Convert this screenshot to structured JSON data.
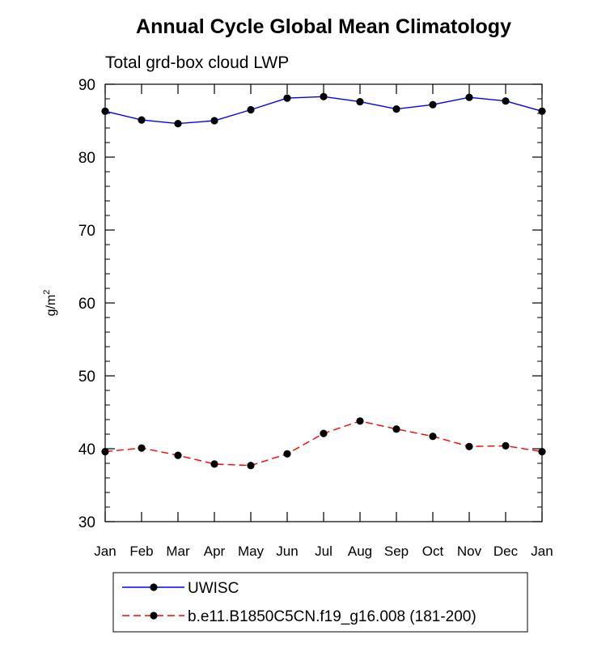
{
  "chart_data": {
    "type": "line",
    "title": "Annual Cycle Global Mean Climatology",
    "subtitle": "Total grd-box cloud LWP",
    "xlabel": "",
    "ylabel": "g/m",
    "ylabel_superscript": "2",
    "categories": [
      "Jan",
      "Feb",
      "Mar",
      "Apr",
      "May",
      "Jun",
      "Jul",
      "Aug",
      "Sep",
      "Oct",
      "Nov",
      "Dec",
      "Jan"
    ],
    "ylim": [
      30,
      90
    ],
    "yticks": [
      30,
      40,
      50,
      60,
      70,
      80,
      90
    ],
    "grid": false,
    "legend_position": "bottom",
    "series": [
      {
        "name": "UWISC",
        "color": "#0000ff",
        "dash": "solid",
        "values": [
          86.3,
          85.1,
          84.6,
          85.0,
          86.5,
          88.1,
          88.3,
          87.6,
          86.6,
          87.2,
          88.2,
          87.7,
          86.3
        ]
      },
      {
        "name": "b.e11.B1850C5CN.f19_g16.008 (181-200)",
        "color": "#ff0000",
        "dash": "dashed",
        "values": [
          39.6,
          40.1,
          39.1,
          37.9,
          37.7,
          39.3,
          42.1,
          43.8,
          42.7,
          41.7,
          40.3,
          40.4,
          39.6
        ]
      }
    ]
  }
}
